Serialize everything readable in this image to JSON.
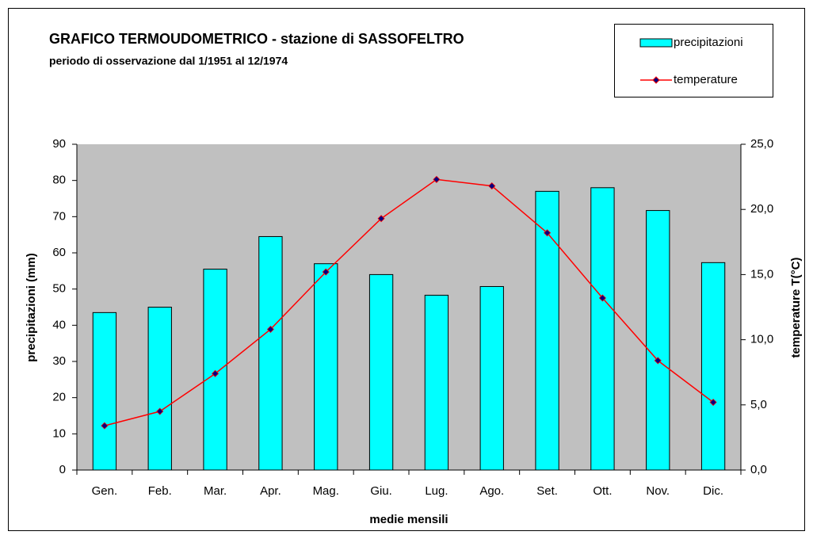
{
  "chart_data": {
    "type": "bar",
    "title": "GRAFICO TERMOUDOMETRICO - stazione di SASSOFELTRO",
    "subtitle": "periodo di osservazione dal 1/1951 al 12/1974",
    "x_label": "medie mensili",
    "y_label": "precipitazioni (mm)",
    "y2_label": "temperature T(°C)",
    "categories": [
      "Gen.",
      "Feb.",
      "Mar.",
      "Apr.",
      "Mag.",
      "Giu.",
      "Lug.",
      "Ago.",
      "Set.",
      "Ott.",
      "Nov.",
      "Dic."
    ],
    "series": [
      {
        "name": "precipitazioni",
        "type": "bar",
        "color": "#00ffff",
        "axis": "y",
        "values": [
          43.5,
          45,
          55.5,
          64.5,
          57,
          54,
          48.3,
          50.7,
          77,
          78,
          71.7,
          57.3
        ]
      },
      {
        "name": "temperature",
        "type": "line",
        "color": "#ff0000",
        "marker_color": "#000080",
        "axis": "y2",
        "values": [
          3.4,
          4.5,
          7.4,
          10.8,
          15.2,
          19.3,
          22.3,
          21.8,
          18.2,
          13.2,
          8.4,
          5.2
        ]
      }
    ],
    "ylim": [
      0,
      90
    ],
    "yticks": [
      0,
      10,
      20,
      30,
      40,
      50,
      60,
      70,
      80,
      90
    ],
    "y2lim": [
      0,
      25
    ],
    "y2ticks": [
      {
        "value": 0,
        "label": "0,0"
      },
      {
        "value": 5,
        "label": "5,0"
      },
      {
        "value": 10,
        "label": "10,0"
      },
      {
        "value": 15,
        "label": "15,0"
      },
      {
        "value": 20,
        "label": "20,0"
      },
      {
        "value": 25,
        "label": "25,0"
      }
    ],
    "plot_background": "#c0c0c0",
    "grid": false,
    "legend": "top-right"
  }
}
